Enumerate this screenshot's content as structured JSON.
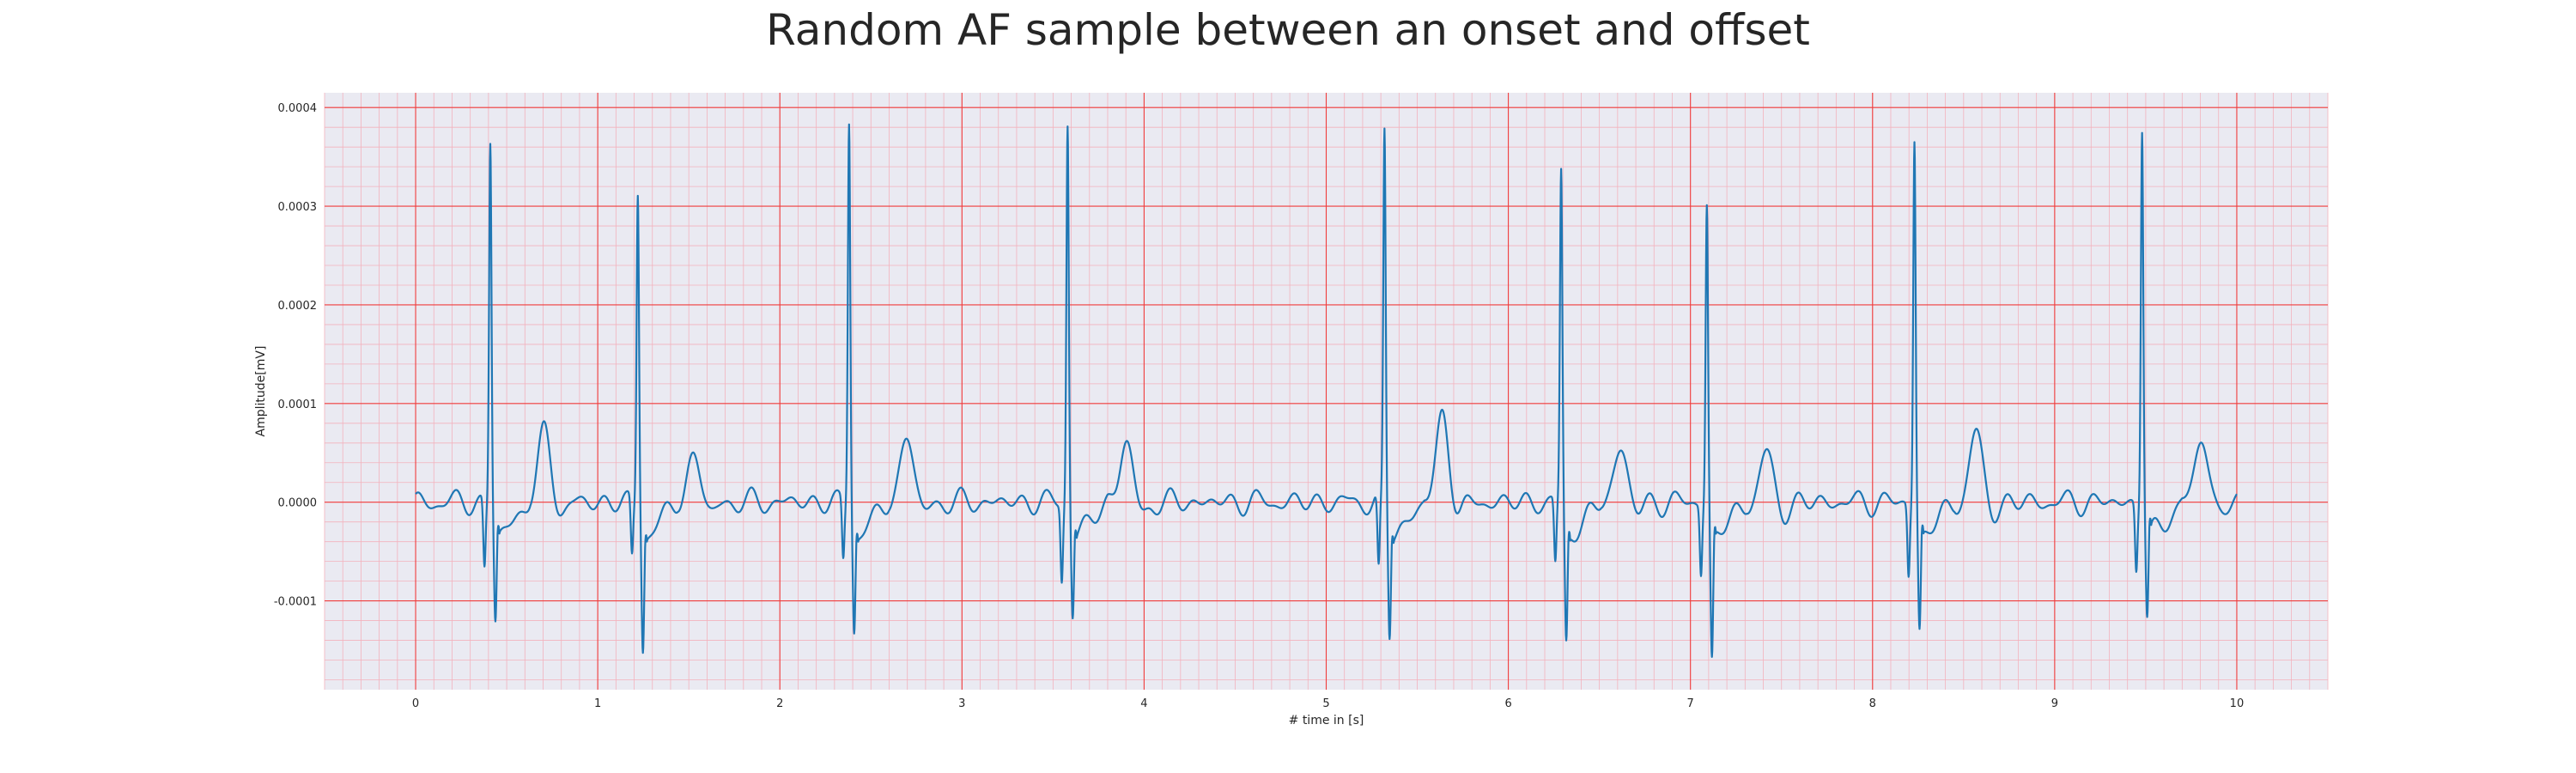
{
  "chart_data": {
    "type": "line",
    "title": "Random AF sample between an onset and offset",
    "xlabel": "# time in [s]",
    "ylabel": "Amplitude[mV]",
    "xlim": [
      -0.5,
      10.5
    ],
    "ylim": [
      -0.00019,
      0.000415
    ],
    "xticks": [
      0,
      1,
      2,
      3,
      4,
      5,
      6,
      7,
      8,
      9,
      10
    ],
    "yticks": [
      -0.0001,
      0.0,
      0.0001,
      0.0002,
      0.0003,
      0.0004
    ],
    "ytick_labels": [
      "-0.0001",
      "0.0000",
      "0.0001",
      "0.0002",
      "0.0003",
      "0.0004"
    ],
    "grid": true,
    "minor_grid": true,
    "colors": {
      "background": "#eaeaf2",
      "major_grid": "#f03c3c",
      "minor_grid": "#f3b2bd",
      "line": "#1f77b4"
    },
    "series": [
      {
        "beats": [
          {
            "r_time": 0.41,
            "r_peak": 0.000366,
            "q_min": -7e-05,
            "s_min": -0.00012,
            "t_amp": 7e-05,
            "t_offset": 0.3
          },
          {
            "r_time": 1.22,
            "r_peak": 0.000315,
            "q_min": -5.8e-05,
            "s_min": -0.000147,
            "t_amp": 4.7e-05,
            "t_offset": 0.31
          },
          {
            "r_time": 2.38,
            "r_peak": 0.000388,
            "q_min": -6e-05,
            "s_min": -0.000128,
            "t_amp": 6.9e-05,
            "t_offset": 0.32
          },
          {
            "r_time": 3.58,
            "r_peak": 0.000386,
            "q_min": -7.7e-05,
            "s_min": -0.000112,
            "t_amp": 6.1e-05,
            "t_offset": 0.32
          },
          {
            "r_time": 5.32,
            "r_peak": 0.000373,
            "q_min": -7.5e-05,
            "s_min": -0.000133,
            "t_amp": 8.7e-05,
            "t_offset": 0.32
          },
          {
            "r_time": 6.29,
            "r_peak": 0.000333,
            "q_min": -6.5e-05,
            "s_min": -0.000143,
            "t_amp": 5.7e-05,
            "t_offset": 0.33
          },
          {
            "r_time": 7.09,
            "r_peak": 0.000302,
            "q_min": -7e-05,
            "s_min": -0.000162,
            "t_amp": 4.9e-05,
            "t_offset": 0.33
          },
          {
            "r_time": 8.23,
            "r_peak": 0.000368,
            "q_min": -7.3e-05,
            "s_min": -0.000131,
            "t_amp": 7e-05,
            "t_offset": 0.34
          },
          {
            "r_time": 9.48,
            "r_peak": 0.000382,
            "q_min": -6.8e-05,
            "s_min": -0.000118,
            "t_amp": 6.7e-05,
            "t_offset": 0.33
          }
        ],
        "x_range": [
          0.0,
          10.0
        ]
      }
    ]
  }
}
